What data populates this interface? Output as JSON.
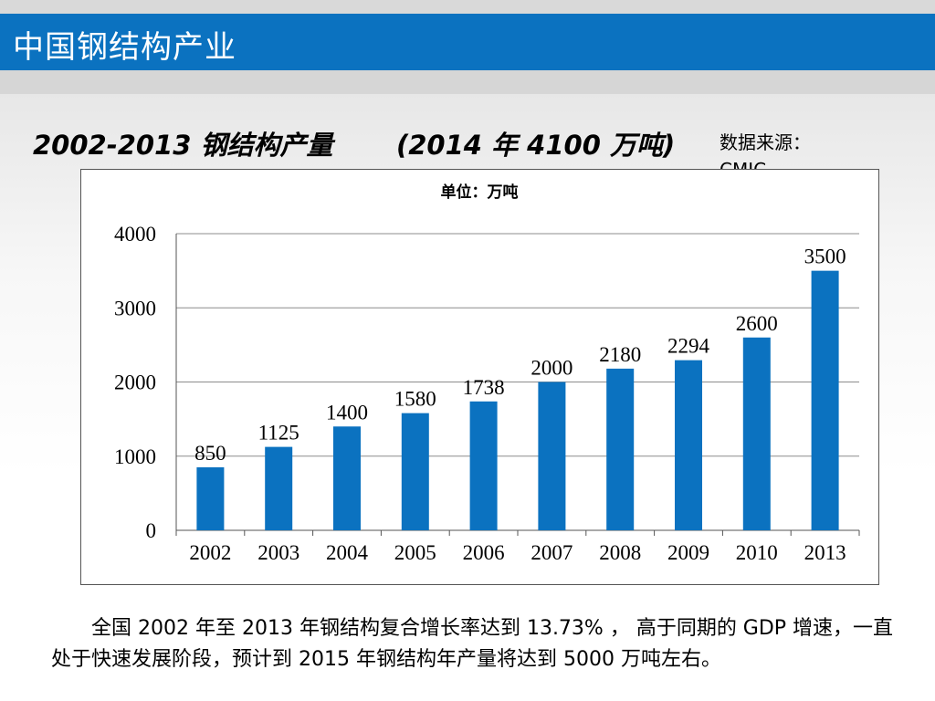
{
  "slide": {
    "title": "中国钢结构产业",
    "heading_left": "2002-2013 钢结构产量",
    "heading_right": "(2014 年 4100 万吨)",
    "source_label": "数据来源：",
    "source_name": "CMIC",
    "paragraph": "全国 2002 年至 2013 年钢结构复合增长率达到 13.73% ， 高于同期的 GDP 增速，一直处于快速发展阶段，预计到 2015 年钢结构年产量将达到 5000 万吨左右。"
  },
  "colors": {
    "title_bar": "#0b72c0",
    "bar": "#0b72c0",
    "grid": "#8c8c8c"
  },
  "chart_data": {
    "type": "bar",
    "title": "单位：万吨",
    "categories": [
      "2002",
      "2003",
      "2004",
      "2005",
      "2006",
      "2007",
      "2008",
      "2009",
      "2010",
      "2013"
    ],
    "values": [
      850,
      1125,
      1400,
      1580,
      1738,
      2000,
      2180,
      2294,
      2600,
      3500
    ],
    "ylim": [
      0,
      4000
    ],
    "yticks": [
      0,
      1000,
      2000,
      3000,
      4000
    ],
    "xlabel": "",
    "ylabel": "",
    "grid": true,
    "legend": "none",
    "data_labels": true
  }
}
